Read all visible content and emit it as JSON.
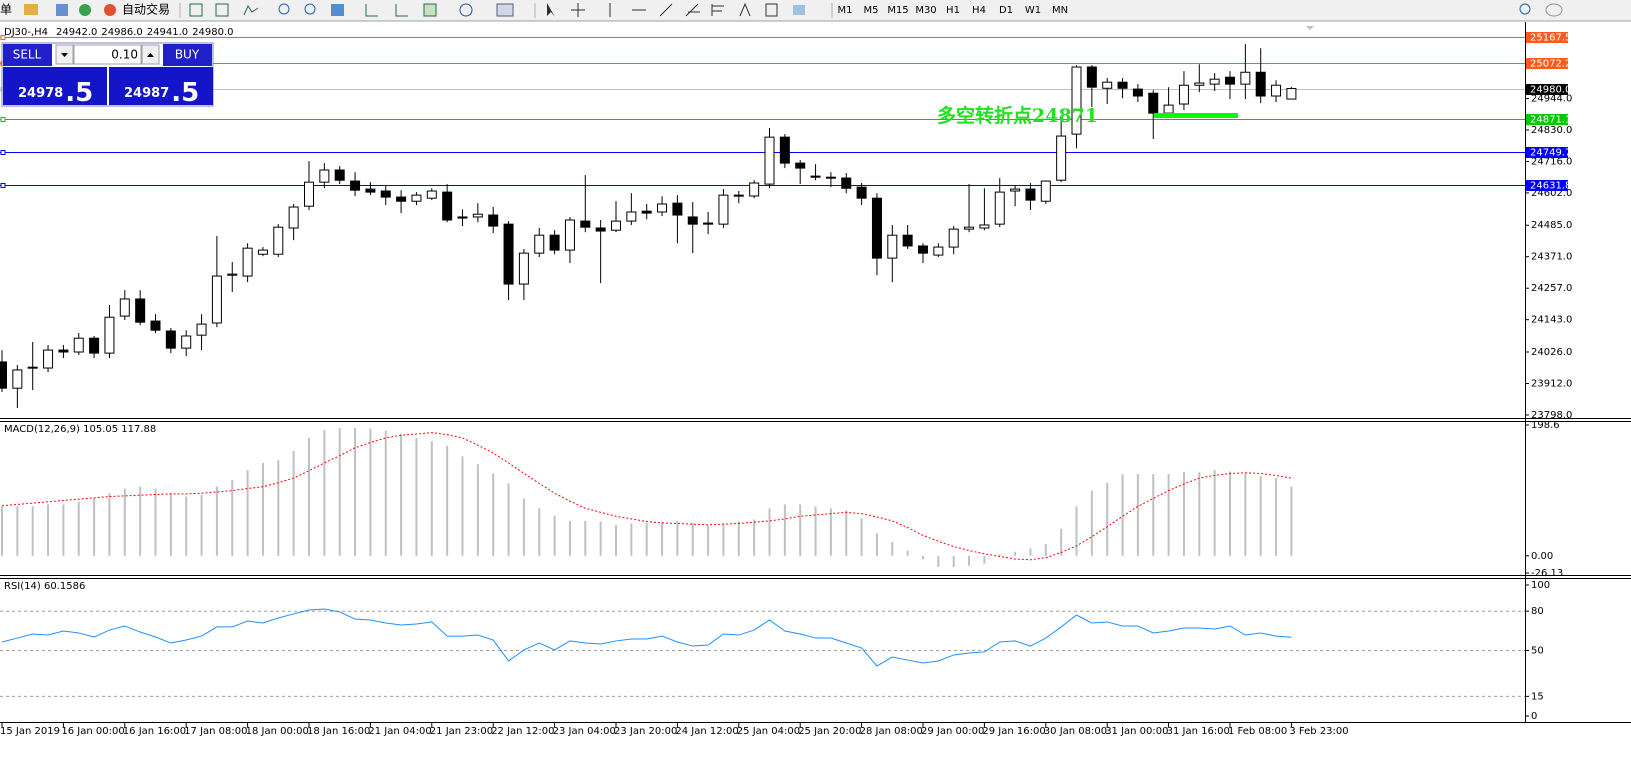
{
  "toolbar": {
    "menu_fragment": "单",
    "auto_trading": "自动交易",
    "timeframes": [
      "M1",
      "M5",
      "M15",
      "M30",
      "H1",
      "H4",
      "D1",
      "W1",
      "MN"
    ]
  },
  "trade_panel": {
    "sell": "SELL",
    "lot": "0.10",
    "buy": "BUY",
    "sell_price": "24978",
    "sell_fraction": ".5",
    "buy_price": "24987",
    "buy_fraction": ".5"
  },
  "chart_data": [
    {
      "type": "candlestick",
      "title": "DJ30-,H4",
      "ohlc_labels": [
        "24942.0",
        "24986.0",
        "24941.0",
        "24980.0"
      ],
      "annotation": "多空转折点24871",
      "categories": [
        "15 Jan 2019",
        null,
        null,
        null,
        "16 Jan 00:00",
        null,
        null,
        null,
        "16 Jan 16:00",
        null,
        null,
        null,
        "17 Jan 08:00",
        null,
        null,
        null,
        "18 Jan 00:00",
        null,
        null,
        null,
        "18 Jan 16:00",
        null,
        null,
        null,
        "21 Jan 04:00",
        null,
        null,
        null,
        "21 Jan 23:00",
        null,
        null,
        null,
        "22 Jan 12:00",
        null,
        null,
        null,
        "23 Jan 04:00",
        null,
        null,
        null,
        "23 Jan 20:00",
        null,
        null,
        null,
        "24 Jan 12:00",
        null,
        null,
        null,
        "25 Jan 04:00",
        null,
        null,
        null,
        "25 Jan 20:00",
        null,
        null,
        null,
        "28 Jan 08:00",
        null,
        null,
        null,
        "29 Jan 00:00",
        null,
        null,
        null,
        "29 Jan 16:00",
        null,
        null,
        null,
        "30 Jan 08:00",
        null,
        null,
        null,
        "31 Jan 00:00",
        null,
        null,
        null,
        "31 Jan 16:00",
        null,
        null,
        null,
        "1 Feb 08:00",
        null,
        null,
        null,
        "3 Feb 23:00"
      ],
      "open": [
        23990,
        23895,
        23968,
        23968,
        24033,
        24026,
        24076,
        24022,
        24156,
        24218,
        24138,
        24102,
        24040,
        24087,
        24131,
        24304,
        24301,
        24380,
        24380,
        24475,
        24554,
        24641,
        24685,
        24645,
        24616,
        24609,
        24587,
        24572,
        24583,
        24605,
        24515,
        24515,
        24522,
        24489,
        24272,
        24384,
        24449,
        24395,
        24500,
        24475,
        24467,
        24500,
        24536,
        24533,
        24565,
        24515,
        24493,
        24489,
        24591,
        24591,
        24634,
        24804,
        24710,
        24663,
        24659,
        24656,
        24623,
        24583,
        24366,
        24449,
        24410,
        24377,
        24406,
        24471,
        24475,
        24489,
        24609,
        24616,
        24572,
        24648,
        24815,
        25058,
        24981,
        25003,
        24978,
        24963,
        24891,
        24924,
        24992,
        24996,
        25021,
        24996,
        25039,
        24953,
        24942
      ],
      "high": [
        24033,
        23979,
        24062,
        24051,
        24051,
        24095,
        24084,
        24196,
        24250,
        24250,
        24163,
        24113,
        24105,
        24163,
        24446,
        24352,
        24420,
        24406,
        24489,
        24562,
        24717,
        24710,
        24699,
        24677,
        24641,
        24630,
        24612,
        24605,
        24619,
        24634,
        24543,
        24565,
        24551,
        24500,
        24399,
        24475,
        24467,
        24515,
        24667,
        24504,
        24572,
        24601,
        24562,
        24590,
        24594,
        24569,
        24533,
        24616,
        24609,
        24648,
        24837,
        24815,
        24721,
        24706,
        24677,
        24674,
        24638,
        24601,
        24486,
        24486,
        24420,
        24420,
        24482,
        24634,
        24619,
        24656,
        24630,
        24638,
        24648,
        24866,
        25065,
        25065,
        25018,
        25018,
        24996,
        24974,
        24985,
        25043,
        25068,
        25036,
        25043,
        25141,
        25126,
        25010,
        24986
      ],
      "low": [
        23881,
        23823,
        23888,
        23953,
        24004,
        24015,
        24004,
        24004,
        24142,
        24123,
        24095,
        24022,
        24011,
        24033,
        24116,
        24243,
        24279,
        24373,
        24370,
        24431,
        24540,
        24619,
        24634,
        24590,
        24594,
        24558,
        24529,
        24558,
        24576,
        24496,
        24482,
        24496,
        24457,
        24214,
        24214,
        24370,
        24380,
        24348,
        24460,
        24276,
        24460,
        24486,
        24507,
        24518,
        24420,
        24384,
        24453,
        24475,
        24565,
        24583,
        24619,
        24692,
        24634,
        24648,
        24623,
        24601,
        24558,
        24304,
        24279,
        24399,
        24348,
        24370,
        24380,
        24460,
        24467,
        24478,
        24554,
        24540,
        24562,
        24641,
        24764,
        24913,
        24924,
        24945,
        24931,
        24797,
        24873,
        24902,
        24967,
        24971,
        24942,
        24942,
        24927,
        24931,
        24941
      ],
      "close": [
        23895,
        23961,
        23971,
        24033,
        24026,
        24076,
        24022,
        24152,
        24218,
        24134,
        24105,
        24040,
        24084,
        24127,
        24301,
        24308,
        24402,
        24395,
        24478,
        24551,
        24641,
        24685,
        24648,
        24612,
        24605,
        24587,
        24572,
        24594,
        24609,
        24504,
        24511,
        24525,
        24482,
        24272,
        24384,
        24449,
        24395,
        24504,
        24478,
        24464,
        24500,
        24533,
        24529,
        24562,
        24522,
        24489,
        24489,
        24594,
        24594,
        24638,
        24804,
        24710,
        24692,
        24659,
        24656,
        24619,
        24583,
        24366,
        24449,
        24410,
        24384,
        24406,
        24471,
        24478,
        24486,
        24605,
        24616,
        24576,
        24645,
        24808,
        25058,
        24985,
        25003,
        24981,
        24953,
        24891,
        24920,
        24992,
        25000,
        25014,
        24996,
        25039,
        24953,
        24992,
        24980
      ],
      "up_color": "#ffffff",
      "down_color": "#000000",
      "ylim": [
        23787,
        25221
      ],
      "yticks": [
        {
          "value": 24944,
          "label": "24944.0"
        },
        {
          "value": 24830,
          "label": "24830.0"
        },
        {
          "value": 24716,
          "label": "24716.0"
        },
        {
          "value": 24602,
          "label": "24602.0"
        },
        {
          "value": 24485,
          "label": "24485.0"
        },
        {
          "value": 24371,
          "label": "24371.0"
        },
        {
          "value": 24257,
          "label": "24257.0"
        },
        {
          "value": 24143,
          "label": "24143.0"
        },
        {
          "value": 24026,
          "label": "24026.0"
        },
        {
          "value": 23912,
          "label": "23912.0"
        },
        {
          "value": 23798,
          "label": "23798.0"
        }
      ],
      "price_lines": [
        {
          "value": 25167.5,
          "label": "25167.5",
          "color": "#ff5a1f"
        },
        {
          "value": 25072.2,
          "label": "25072.2",
          "color": "#ff5a1f"
        },
        {
          "value": 24980,
          "label": "24980.0",
          "color": "#c0c0c0",
          "label_color": "#000000"
        },
        {
          "value": 24871.1,
          "label": "24871.1",
          "color": "#00c800"
        },
        {
          "value": 24749.7,
          "label": "24749.7",
          "color": "#0000ff"
        },
        {
          "value": 24631.8,
          "label": "24631.8",
          "color": "#0000ff"
        }
      ]
    },
    {
      "type": "macd",
      "title": "MACD(12,26,9) 105.05 117.88",
      "values": [
        75,
        75,
        75,
        78,
        78,
        82,
        87,
        95,
        102,
        105,
        102,
        95,
        90,
        92,
        105,
        115,
        130,
        141,
        145,
        159,
        179,
        191,
        194,
        194,
        193,
        190,
        185,
        179,
        174,
        167,
        151,
        139,
        125,
        110,
        87,
        72,
        61,
        53,
        53,
        52,
        47,
        49,
        50,
        52,
        53,
        50,
        46,
        49,
        52,
        55,
        72,
        78,
        78,
        75,
        72,
        69,
        57,
        34,
        21,
        8,
        -5,
        -17,
        -17,
        -15,
        -12,
        2,
        6,
        11,
        18,
        41,
        75,
        99,
        111,
        124,
        124,
        124,
        124,
        127,
        127,
        130,
        128,
        125,
        121,
        118,
        105.05
      ],
      "signal": [
        76,
        78,
        80,
        82,
        84,
        86,
        88,
        90,
        91,
        92,
        93,
        94,
        94,
        95,
        97,
        99,
        102,
        105,
        111,
        118,
        129,
        141,
        152,
        164,
        172,
        179,
        183,
        185,
        187,
        184,
        179,
        168,
        156,
        141,
        125,
        110,
        95,
        83,
        72,
        66,
        60,
        56,
        52,
        50,
        49,
        48,
        47,
        48,
        49,
        51,
        53,
        56,
        60,
        62,
        64,
        66,
        64,
        59,
        53,
        43,
        31,
        22,
        14,
        8,
        3,
        -1,
        -5,
        -6,
        -3,
        5,
        15,
        29,
        44,
        60,
        75,
        87,
        99,
        109,
        118,
        122,
        125,
        126,
        125,
        122,
        117.88
      ],
      "color": "#c0c0c0",
      "signal_color": "#ff0000",
      "ylim": [
        -26.13,
        198.6
      ],
      "yticks": [
        198.6,
        {
          "value": 0,
          "label": "0.00"
        },
        -26.13
      ]
    },
    {
      "type": "line",
      "title": "RSI(14) 60.1586",
      "values": [
        56.5,
        59.5,
        62.6,
        61.8,
        64.9,
        63.4,
        60.3,
        65.6,
        68.7,
        64.1,
        60.3,
        55.7,
        58,
        61,
        68,
        68,
        72.5,
        71,
        74.8,
        77.9,
        80.9,
        81.7,
        79.4,
        74,
        73.3,
        71,
        69.5,
        70.2,
        71.8,
        61,
        61,
        61.8,
        58,
        42,
        50.4,
        55.7,
        50.4,
        57.3,
        55.7,
        55,
        57.3,
        58.8,
        58.8,
        61,
        56.5,
        53.4,
        54.2,
        62.6,
        61.8,
        65.6,
        73.3,
        64.9,
        62.6,
        59.5,
        59.5,
        55.7,
        51.9,
        38.2,
        45,
        42.7,
        40.5,
        42,
        46.6,
        48.1,
        48.9,
        56.5,
        57.3,
        53.4,
        59.5,
        68,
        77.1,
        71,
        71.8,
        68.7,
        68.7,
        63.4,
        64.9,
        67.2,
        67.2,
        66.4,
        68.7,
        61.8,
        63.4,
        61,
        60.1586
      ],
      "color": "#1e90ff",
      "ylim": [
        0,
        100
      ],
      "yticks": [
        100,
        80,
        50,
        15,
        0
      ],
      "levels": [
        80,
        50,
        15
      ]
    }
  ]
}
